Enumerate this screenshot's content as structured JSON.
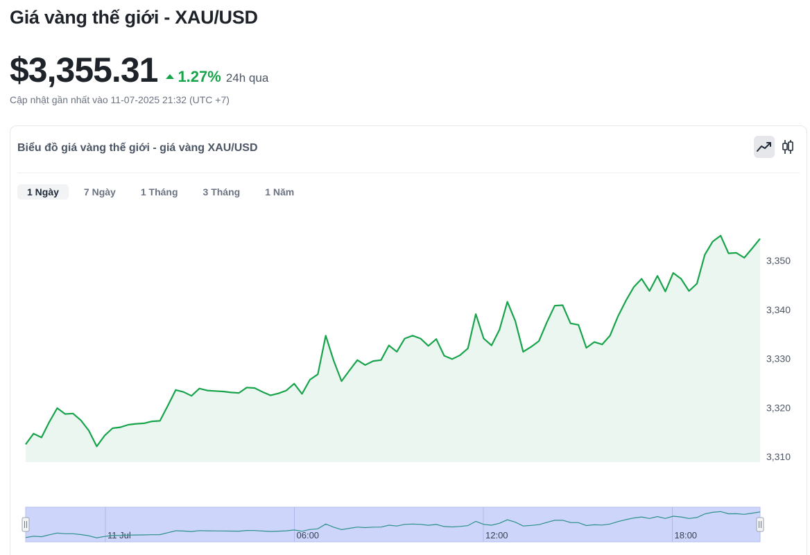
{
  "header": {
    "title": "Giá vàng thế giới - XAU/USD",
    "price": "$3,355.31",
    "change": "1.27%",
    "period": "24h qua",
    "updated": "Cập nhật gần nhất vào 11-07-2025 21:32 (UTC +7)"
  },
  "card": {
    "title": "Biểu đồ giá vàng thế giới - giá vàng XAU/USD",
    "tabs": [
      {
        "label": "1 Ngày",
        "active": true
      },
      {
        "label": "7 Ngày",
        "active": false
      },
      {
        "label": "1 Tháng",
        "active": false
      },
      {
        "label": "3 Tháng",
        "active": false
      },
      {
        "label": "1 Năm",
        "active": false
      }
    ]
  },
  "icons": {
    "line_chart": "line-chart-icon",
    "candlestick": "candlestick-icon"
  },
  "colors": {
    "line": "#16a34a",
    "area": "#eaf6ef",
    "accent": "#16a34a",
    "navigator_fill": "#cdd5fb"
  },
  "chart_data": {
    "type": "area",
    "ylim": [
      3310,
      3356
    ],
    "yticks": [
      3310,
      3320,
      3330,
      3340,
      3350
    ],
    "ytick_labels": [
      "3,310",
      "3,320",
      "3,330",
      "3,340",
      "3,350"
    ],
    "navigator_labels": [
      {
        "label": "11 Jul",
        "pos": 0.0
      },
      {
        "label": "06:00",
        "pos": 0.25
      },
      {
        "label": "12:00",
        "pos": 0.5
      },
      {
        "label": "18:00",
        "pos": 0.75
      }
    ],
    "values": [
      3312.5,
      3314.7,
      3313.9,
      3317.1,
      3319.9,
      3318.7,
      3318.8,
      3317.4,
      3315.3,
      3312.1,
      3314.3,
      3315.8,
      3316.0,
      3316.5,
      3316.7,
      3316.8,
      3317.2,
      3317.3,
      3320.4,
      3323.6,
      3323.2,
      3322.4,
      3323.9,
      3323.5,
      3323.4,
      3323.3,
      3323.1,
      3323.0,
      3324.1,
      3324.0,
      3323.2,
      3322.5,
      3322.9,
      3323.5,
      3324.9,
      3322.8,
      3325.7,
      3326.8,
      3334.7,
      3329.6,
      3325.4,
      3327.6,
      3329.7,
      3328.7,
      3329.5,
      3329.7,
      3332.7,
      3331.4,
      3334.1,
      3334.7,
      3334.1,
      3332.6,
      3334.0,
      3330.6,
      3329.9,
      3330.7,
      3332.1,
      3339.1,
      3334.1,
      3332.7,
      3335.9,
      3341.6,
      3337.7,
      3331.4,
      3332.4,
      3333.6,
      3337.4,
      3340.8,
      3340.9,
      3337.2,
      3336.9,
      3332.2,
      3333.4,
      3332.9,
      3334.7,
      3338.6,
      3341.8,
      3344.6,
      3346.3,
      3343.8,
      3346.9,
      3343.7,
      3347.5,
      3346.3,
      3343.8,
      3345.3,
      3351.2,
      3353.9,
      3355.1,
      3351.5,
      3351.6,
      3350.6,
      3352.5,
      3354.5
    ]
  }
}
